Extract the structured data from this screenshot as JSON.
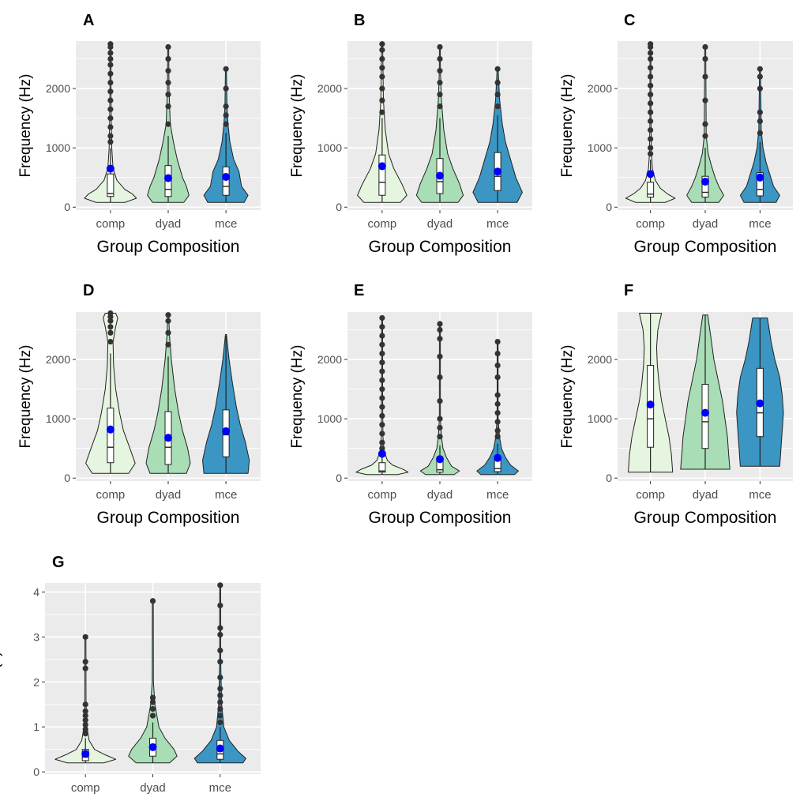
{
  "figure": {
    "colors": {
      "panel_bg": "#ebebeb",
      "grid": "#ffffff",
      "comp": "#e6f5df",
      "dyad": "#a9ddb6",
      "mce": "#3b96c4",
      "mean_point": "#0000ff",
      "outline": "#222222"
    }
  },
  "chart_data": [
    {
      "id": "A",
      "type": "violin",
      "title": "A",
      "xlabel": "Group Composition",
      "ylabel": "Frequency (Hz)",
      "ylim": [
        -50,
        2800
      ],
      "yticks": [
        0,
        1000,
        2000
      ],
      "categories": [
        "comp",
        "dyad",
        "mce"
      ],
      "series": [
        {
          "category": "comp",
          "q1": 180,
          "median": 230,
          "q3": 560,
          "whisker_high": 990,
          "mean": 650,
          "min": 80,
          "max": 2750,
          "outliers": [
            1100,
            1200,
            1350,
            1500,
            1650,
            1800,
            1950,
            2100,
            2250,
            2400,
            2500,
            2600,
            2700,
            2750
          ],
          "violin_y": [
            80,
            150,
            220,
            300,
            450,
            650,
            1000,
            1500,
            2000,
            2750
          ],
          "violin_w": [
            0.55,
            1.0,
            0.85,
            0.55,
            0.25,
            0.1,
            0.05,
            0.03,
            0.02,
            0.01
          ]
        },
        {
          "category": "dyad",
          "q1": 180,
          "median": 300,
          "q3": 700,
          "whisker_high": 1200,
          "mean": 490,
          "min": 80,
          "max": 2700,
          "outliers": [
            1400,
            1700,
            1900,
            2100,
            2300,
            2500,
            2700
          ],
          "violin_y": [
            80,
            200,
            350,
            500,
            800,
            1100,
            1400,
            2000,
            2700
          ],
          "violin_w": [
            0.6,
            0.8,
            0.7,
            0.55,
            0.35,
            0.2,
            0.08,
            0.03,
            0.01
          ]
        },
        {
          "category": "mce",
          "q1": 200,
          "median": 350,
          "q3": 680,
          "whisker_high": 1250,
          "mean": 510,
          "min": 80,
          "max": 2330,
          "outliers": [
            1400,
            1550,
            1700,
            2000,
            2330
          ],
          "violin_y": [
            80,
            200,
            350,
            600,
            800,
            1100,
            1400,
            1700,
            2330
          ],
          "violin_w": [
            0.7,
            0.85,
            0.6,
            0.5,
            0.3,
            0.15,
            0.08,
            0.04,
            0.01
          ]
        }
      ]
    },
    {
      "id": "B",
      "type": "violin",
      "title": "B",
      "xlabel": "Group Composition",
      "ylabel": "Frequency (Hz)",
      "ylim": [
        -50,
        2800
      ],
      "yticks": [
        0,
        1000,
        2000
      ],
      "categories": [
        "comp",
        "dyad",
        "mce"
      ],
      "series": [
        {
          "category": "comp",
          "q1": 200,
          "median": 420,
          "q3": 880,
          "whisker_high": 1500,
          "mean": 690,
          "min": 80,
          "max": 2750,
          "outliers": [
            1600,
            1800,
            2000,
            2200,
            2350,
            2500,
            2650,
            2750
          ],
          "violin_y": [
            80,
            200,
            400,
            650,
            900,
            1300,
            1800,
            2750
          ],
          "violin_w": [
            0.7,
            0.95,
            0.75,
            0.45,
            0.25,
            0.12,
            0.05,
            0.01
          ]
        },
        {
          "category": "dyad",
          "q1": 230,
          "median": 430,
          "q3": 820,
          "whisker_high": 1500,
          "mean": 530,
          "min": 80,
          "max": 2700,
          "outliers": [
            1700,
            1900,
            2100,
            2300,
            2500,
            2700
          ],
          "violin_y": [
            80,
            200,
            400,
            650,
            900,
            1300,
            1800,
            2300,
            2700
          ],
          "violin_w": [
            0.7,
            0.9,
            0.75,
            0.5,
            0.3,
            0.15,
            0.06,
            0.02,
            0.01
          ]
        },
        {
          "category": "mce",
          "q1": 280,
          "median": 520,
          "q3": 920,
          "whisker_high": 1550,
          "mean": 600,
          "min": 80,
          "max": 2330,
          "outliers": [
            1700,
            1900,
            2100,
            2330
          ],
          "violin_y": [
            80,
            250,
            500,
            800,
            1100,
            1400,
            1800,
            2330
          ],
          "violin_w": [
            0.75,
            0.95,
            0.7,
            0.5,
            0.3,
            0.18,
            0.08,
            0.02
          ]
        }
      ]
    },
    {
      "id": "C",
      "type": "violin",
      "title": "C",
      "xlabel": "Group Composition",
      "ylabel": "Frequency (Hz)",
      "ylim": [
        -50,
        2800
      ],
      "yticks": [
        0,
        1000,
        2000
      ],
      "categories": [
        "comp",
        "dyad",
        "mce"
      ],
      "series": [
        {
          "category": "comp",
          "q1": 170,
          "median": 220,
          "q3": 420,
          "whisker_high": 800,
          "mean": 560,
          "min": 80,
          "max": 2750,
          "outliers": [
            900,
            1000,
            1150,
            1300,
            1450,
            1600,
            1750,
            1900,
            2050,
            2200,
            2350,
            2500,
            2600,
            2700,
            2750
          ],
          "violin_y": [
            80,
            150,
            220,
            320,
            450,
            650,
            900,
            1500,
            2750
          ],
          "violin_w": [
            0.6,
            1.0,
            0.7,
            0.4,
            0.2,
            0.08,
            0.04,
            0.02,
            0.01
          ]
        },
        {
          "category": "dyad",
          "q1": 170,
          "median": 250,
          "q3": 520,
          "whisker_high": 1000,
          "mean": 430,
          "min": 80,
          "max": 2700,
          "outliers": [
            1200,
            1400,
            1800,
            2200,
            2500,
            2700
          ],
          "violin_y": [
            80,
            200,
            350,
            500,
            700,
            900,
            1200,
            2700
          ],
          "violin_w": [
            0.55,
            0.75,
            0.55,
            0.4,
            0.25,
            0.12,
            0.04,
            0.01
          ]
        },
        {
          "category": "mce",
          "q1": 190,
          "median": 300,
          "q3": 580,
          "whisker_high": 1100,
          "mean": 500,
          "min": 80,
          "max": 2330,
          "outliers": [
            1250,
            1450,
            1600,
            2000,
            2200,
            2330
          ],
          "violin_y": [
            80,
            200,
            350,
            550,
            750,
            1000,
            1300,
            2330
          ],
          "violin_w": [
            0.65,
            0.8,
            0.55,
            0.4,
            0.25,
            0.12,
            0.05,
            0.01
          ]
        }
      ]
    },
    {
      "id": "D",
      "type": "violin",
      "title": "D",
      "xlabel": "Group Composition",
      "ylabel": "Frequency (Hz)",
      "ylim": [
        -50,
        2800
      ],
      "yticks": [
        0,
        1000,
        2000
      ],
      "categories": [
        "comp",
        "dyad",
        "mce"
      ],
      "series": [
        {
          "category": "comp",
          "q1": 260,
          "median": 520,
          "q3": 1180,
          "whisker_high": 2100,
          "mean": 820,
          "min": 80,
          "max": 2780,
          "outliers": [
            2300,
            2450,
            2550,
            2650,
            2720,
            2780
          ],
          "violin_y": [
            80,
            250,
            500,
            800,
            1100,
            1500,
            1900,
            2300,
            2550,
            2700,
            2780
          ],
          "violin_w": [
            0.7,
            0.95,
            0.75,
            0.5,
            0.35,
            0.2,
            0.12,
            0.1,
            0.2,
            0.28,
            0.2
          ]
        },
        {
          "category": "dyad",
          "q1": 230,
          "median": 520,
          "q3": 1120,
          "whisker_high": 2050,
          "mean": 680,
          "min": 80,
          "max": 2750,
          "outliers": [
            2250,
            2450,
            2650,
            2750
          ],
          "violin_y": [
            80,
            250,
            500,
            800,
            1100,
            1500,
            2000,
            2400,
            2750
          ],
          "violin_w": [
            0.7,
            0.85,
            0.75,
            0.55,
            0.4,
            0.25,
            0.12,
            0.05,
            0.01
          ]
        },
        {
          "category": "mce",
          "q1": 360,
          "median": 730,
          "q3": 1150,
          "whisker_high": 2400,
          "mean": 790,
          "min": 80,
          "max": 2420,
          "outliers": [],
          "violin_y": [
            80,
            300,
            600,
            900,
            1200,
            1600,
            2000,
            2420
          ],
          "violin_w": [
            0.85,
            0.9,
            0.75,
            0.55,
            0.4,
            0.25,
            0.12,
            0.02
          ]
        }
      ]
    },
    {
      "id": "E",
      "type": "violin",
      "title": "E",
      "xlabel": "Group Composition",
      "ylabel": "Frequency (Hz)",
      "ylim": [
        -50,
        2800
      ],
      "yticks": [
        0,
        1000,
        2000
      ],
      "categories": [
        "comp",
        "dyad",
        "mce"
      ],
      "series": [
        {
          "category": "comp",
          "q1": 100,
          "median": 120,
          "q3": 260,
          "whisker_high": 400,
          "mean": 410,
          "min": 60,
          "max": 2700,
          "outliers": [
            500,
            600,
            750,
            900,
            1050,
            1200,
            1350,
            1500,
            1650,
            1800,
            1950,
            2100,
            2250,
            2400,
            2550,
            2700
          ],
          "violin_y": [
            60,
            100,
            150,
            220,
            300,
            450,
            700,
            1500,
            2700
          ],
          "violin_w": [
            0.6,
            1.0,
            0.8,
            0.4,
            0.2,
            0.08,
            0.03,
            0.01,
            0.005
          ]
        },
        {
          "category": "dyad",
          "q1": 100,
          "median": 140,
          "q3": 300,
          "whisker_high": 550,
          "mean": 320,
          "min": 60,
          "max": 2600,
          "outliers": [
            700,
            850,
            1000,
            1300,
            1700,
            2050,
            2350,
            2500,
            2600
          ],
          "violin_y": [
            60,
            120,
            200,
            350,
            500,
            700,
            1000,
            2600
          ],
          "violin_w": [
            0.55,
            0.75,
            0.45,
            0.25,
            0.12,
            0.06,
            0.02,
            0.005
          ]
        },
        {
          "category": "mce",
          "q1": 110,
          "median": 160,
          "q3": 330,
          "whisker_high": 580,
          "mean": 340,
          "min": 60,
          "max": 2300,
          "outliers": [
            700,
            800,
            950,
            1100,
            1250,
            1400,
            1700,
            1900,
            2100,
            2300
          ],
          "violin_y": [
            60,
            120,
            220,
            350,
            500,
            700,
            1000,
            2300
          ],
          "violin_w": [
            0.65,
            0.8,
            0.5,
            0.3,
            0.15,
            0.07,
            0.02,
            0.005
          ]
        }
      ]
    },
    {
      "id": "F",
      "type": "violin",
      "title": "F",
      "xlabel": "Group Composition",
      "ylabel": "Frequency (Hz)",
      "ylim": [
        -50,
        2800
      ],
      "yticks": [
        0,
        1000,
        2000
      ],
      "categories": [
        "comp",
        "dyad",
        "mce"
      ],
      "series": [
        {
          "category": "comp",
          "q1": 520,
          "median": 1000,
          "q3": 1900,
          "whisker_high": 2780,
          "mean": 1240,
          "min": 100,
          "max": 2780,
          "outliers": [],
          "violin_y": [
            100,
            400,
            700,
            1000,
            1300,
            1600,
            1900,
            2200,
            2500,
            2780
          ],
          "violin_w": [
            0.9,
            0.85,
            0.75,
            0.6,
            0.45,
            0.35,
            0.28,
            0.25,
            0.3,
            0.45
          ]
        },
        {
          "category": "dyad",
          "q1": 500,
          "median": 950,
          "q3": 1580,
          "whisker_high": 2750,
          "mean": 1100,
          "min": 150,
          "max": 2750,
          "outliers": [],
          "violin_y": [
            150,
            400,
            700,
            1000,
            1300,
            1600,
            2000,
            2400,
            2750
          ],
          "violin_w": [
            1.0,
            0.95,
            0.9,
            0.8,
            0.7,
            0.55,
            0.35,
            0.22,
            0.1
          ]
        },
        {
          "category": "mce",
          "q1": 700,
          "median": 1100,
          "q3": 1850,
          "whisker_high": 2700,
          "mean": 1260,
          "min": 200,
          "max": 2700,
          "outliers": [],
          "violin_y": [
            200,
            500,
            800,
            1100,
            1400,
            1700,
            2000,
            2300,
            2700
          ],
          "violin_w": [
            0.8,
            0.85,
            0.9,
            0.95,
            0.9,
            0.8,
            0.6,
            0.45,
            0.3
          ]
        }
      ]
    },
    {
      "id": "G",
      "type": "violin",
      "title": "G",
      "xlabel": "Group Composition",
      "ylabel": "Time (s)",
      "ylim": [
        -0.05,
        4.2
      ],
      "yticks": [
        0,
        1,
        2,
        3,
        4
      ],
      "categories": [
        "comp",
        "dyad",
        "mce"
      ],
      "series": [
        {
          "category": "comp",
          "q1": 0.25,
          "median": 0.33,
          "q3": 0.5,
          "whisker_high": 0.75,
          "mean": 0.4,
          "min": 0.2,
          "max": 3.0,
          "outliers": [
            0.85,
            0.95,
            1.05,
            1.15,
            1.25,
            1.35,
            1.5,
            2.3,
            2.45,
            3.0
          ],
          "violin_y": [
            0.2,
            0.28,
            0.38,
            0.5,
            0.7,
            1.0,
            1.5,
            3.0
          ],
          "violin_w": [
            0.6,
            1.0,
            0.65,
            0.3,
            0.12,
            0.05,
            0.02,
            0.005
          ]
        },
        {
          "category": "dyad",
          "q1": 0.35,
          "median": 0.5,
          "q3": 0.75,
          "whisker_high": 1.1,
          "mean": 0.55,
          "min": 0.2,
          "max": 3.8,
          "outliers": [
            1.25,
            1.4,
            1.55,
            1.65,
            3.8
          ],
          "violin_y": [
            0.2,
            0.35,
            0.5,
            0.75,
            1.0,
            1.5,
            2.0,
            3.8
          ],
          "violin_w": [
            0.55,
            0.8,
            0.7,
            0.4,
            0.2,
            0.07,
            0.02,
            0.005
          ]
        },
        {
          "category": "mce",
          "q1": 0.28,
          "median": 0.4,
          "q3": 0.7,
          "whisker_high": 1.0,
          "mean": 0.52,
          "min": 0.2,
          "max": 4.15,
          "outliers": [
            1.1,
            1.25,
            1.4,
            1.55,
            1.7,
            1.85,
            2.1,
            2.45,
            2.7,
            3.05,
            3.2,
            3.7,
            4.15
          ],
          "violin_y": [
            0.2,
            0.3,
            0.45,
            0.7,
            1.0,
            1.5,
            2.5,
            4.15
          ],
          "violin_w": [
            0.75,
            0.85,
            0.6,
            0.3,
            0.12,
            0.05,
            0.015,
            0.005
          ]
        }
      ]
    }
  ]
}
